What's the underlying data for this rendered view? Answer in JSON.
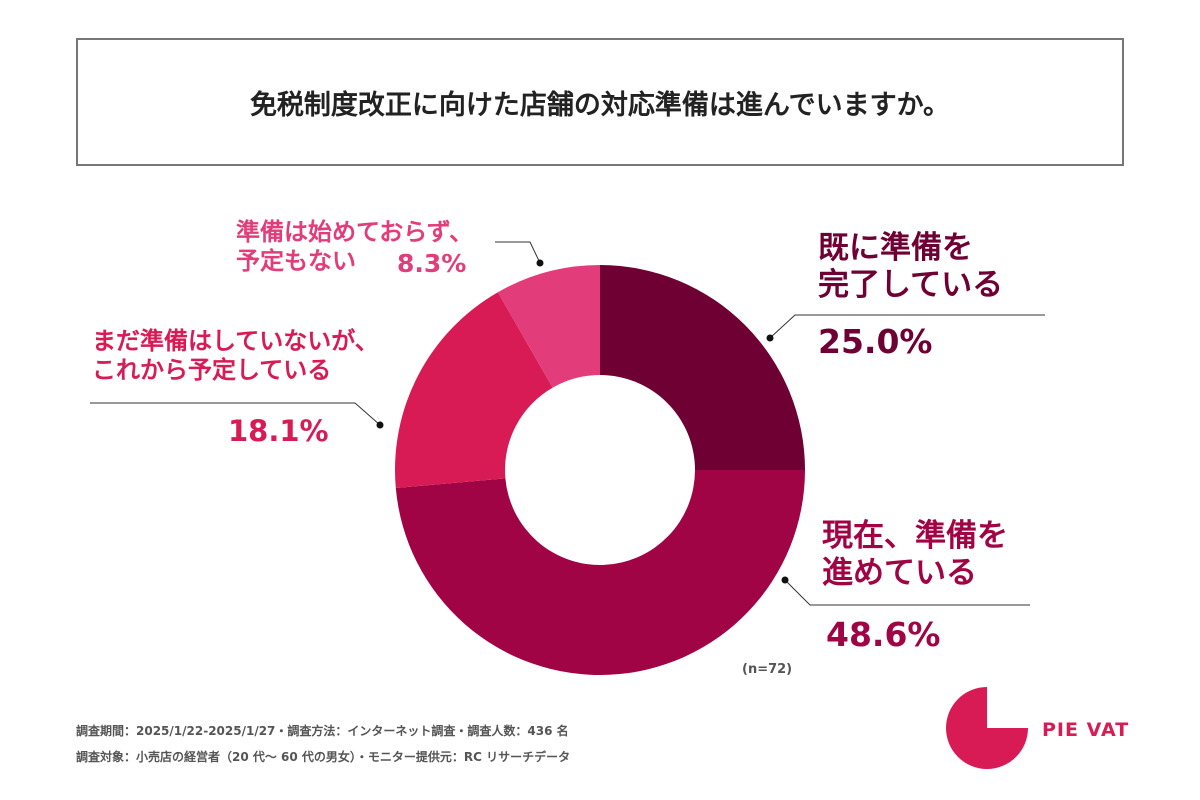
{
  "title": "免税制度改正に向けた店舗の対応準備は進んでいますか。",
  "chart_data": {
    "type": "pie",
    "donut": true,
    "title": "免税制度改正に向けた店舗の対応準備は進んでいますか。",
    "slices": [
      {
        "label_line1": "既に準備を",
        "label_line2": "完了している",
        "value": 25.0,
        "value_label": "25.0%",
        "color": "#6e0034"
      },
      {
        "label_line1": "現在、準備を",
        "label_line2": "進めている",
        "value": 48.6,
        "value_label": "48.6%",
        "color": "#a00445"
      },
      {
        "label_line1": "まだ準備はしていないが、",
        "label_line2": "これから予定している",
        "value": 18.1,
        "value_label": "18.1%",
        "color": "#d81b55"
      },
      {
        "label_line1": "準備は始めておらず、",
        "label_line2": "予定もない",
        "value": 8.3,
        "value_label": "8.3%",
        "color": "#e23d7a"
      }
    ],
    "sample_note": "(n=72)"
  },
  "footer": {
    "line1": "調査期間：2025/1/22-2025/1/27・調査方法：インターネット調査・調査人数：436 名",
    "line2": "調査対象：小売店の経営者（20 代〜 60 代の男女）・モニター提供元：RC リサーチデータ"
  },
  "logo": {
    "text": "PIE VAT",
    "color": "#d81b55"
  }
}
